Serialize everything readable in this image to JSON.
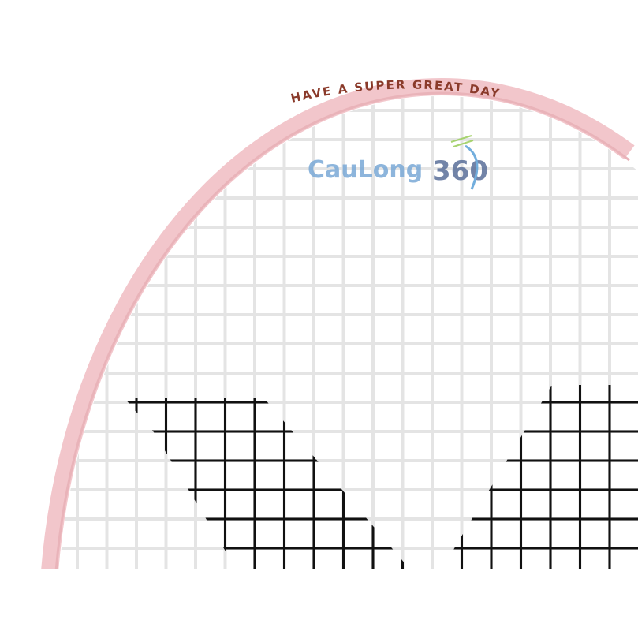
{
  "image": {
    "subject": "badminton racket head",
    "frame_color": "#f2c6cb",
    "string_color": "#e6e6e6",
    "logo_string_color": "#111111",
    "frame_text_color": "#8a3a2a"
  },
  "frame_text": "HAVE A SUPER GREAT DAY",
  "watermark": {
    "brand": "CauLong",
    "number": "360",
    "brand_color": "#7aa9d6",
    "number_color": "#5a6f9a"
  }
}
